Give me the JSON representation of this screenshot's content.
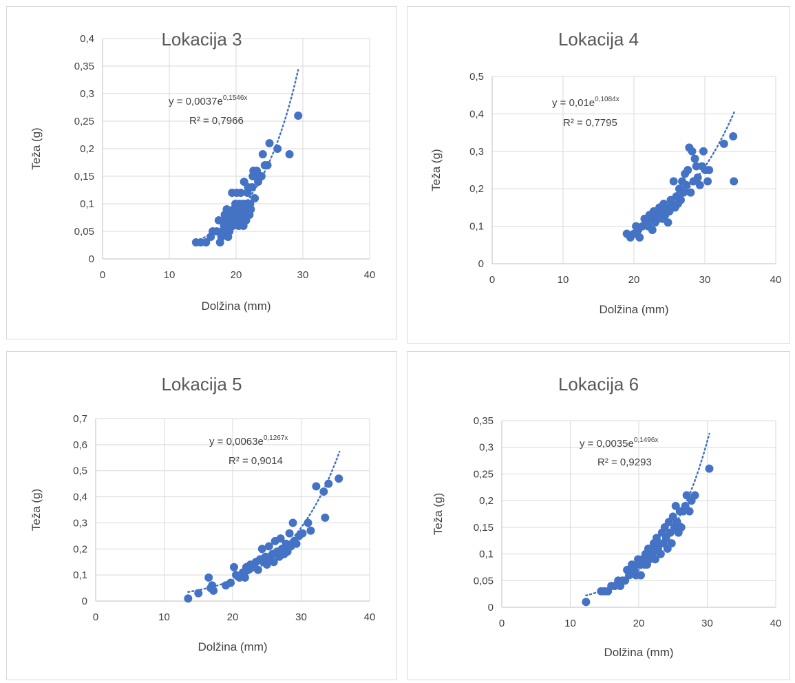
{
  "colors": {
    "marker": "#4472c4",
    "trend": "#4472c4",
    "grid": "#d9d9d9",
    "text": "#404040",
    "title": "#595959"
  },
  "chart_data": [
    {
      "type": "scatter",
      "title": "Lokacija 3",
      "xlabel": "Dolžina (mm)",
      "ylabel": "Teža (g)",
      "xlim": [
        0,
        40
      ],
      "ylim": [
        0,
        0.4
      ],
      "xticks": [
        "0",
        "10",
        "20",
        "30",
        "40"
      ],
      "yticks": [
        "0",
        "0,05",
        "0,1",
        "0,15",
        "0,2",
        "0,25",
        "0,3",
        "0,35",
        "0,4"
      ],
      "trendline": {
        "type": "exponential",
        "a": 0.0037,
        "b": 0.1546,
        "x_range": [
          14,
          29.3
        ]
      },
      "equation": {
        "prefix": "y = 0,0037e",
        "exp": "0,1546x",
        "r2": "R² = 0,7966"
      },
      "grid": true,
      "legend": "none",
      "points": [
        [
          14,
          0.03
        ],
        [
          14.7,
          0.03
        ],
        [
          15.5,
          0.03
        ],
        [
          16.2,
          0.04
        ],
        [
          16.5,
          0.05
        ],
        [
          17.1,
          0.05
        ],
        [
          17.4,
          0.07
        ],
        [
          17.6,
          0.03
        ],
        [
          17.8,
          0.04
        ],
        [
          18,
          0.05
        ],
        [
          18.2,
          0.06
        ],
        [
          18.3,
          0.08
        ],
        [
          18.5,
          0.07
        ],
        [
          18.6,
          0.09
        ],
        [
          18.8,
          0.04
        ],
        [
          18.9,
          0.06
        ],
        [
          19,
          0.05
        ],
        [
          19.2,
          0.07
        ],
        [
          19.3,
          0.08
        ],
        [
          19.4,
          0.12
        ],
        [
          19.5,
          0.06
        ],
        [
          19.6,
          0.09
        ],
        [
          19.8,
          0.07
        ],
        [
          19.9,
          0.1
        ],
        [
          20,
          0.08
        ],
        [
          20.1,
          0.12
        ],
        [
          20.2,
          0.07
        ],
        [
          20.3,
          0.09
        ],
        [
          20.4,
          0.06
        ],
        [
          20.5,
          0.1
        ],
        [
          20.6,
          0.08
        ],
        [
          20.7,
          0.12
        ],
        [
          20.8,
          0.07
        ],
        [
          20.9,
          0.09
        ],
        [
          21,
          0.1
        ],
        [
          21.1,
          0.06
        ],
        [
          21.2,
          0.14
        ],
        [
          21.3,
          0.08
        ],
        [
          21.4,
          0.1
        ],
        [
          21.5,
          0.07
        ],
        [
          21.6,
          0.09
        ],
        [
          21.7,
          0.12
        ],
        [
          21.8,
          0.13
        ],
        [
          22,
          0.08
        ],
        [
          22.1,
          0.1
        ],
        [
          22.2,
          0.09
        ],
        [
          22.4,
          0.13
        ],
        [
          22.5,
          0.15
        ],
        [
          22.6,
          0.16
        ],
        [
          22.8,
          0.11
        ],
        [
          23,
          0.15
        ],
        [
          23.1,
          0.16
        ],
        [
          23.3,
          0.14
        ],
        [
          23.5,
          0.15
        ],
        [
          23.8,
          0.15
        ],
        [
          24,
          0.19
        ],
        [
          24.3,
          0.17
        ],
        [
          24.7,
          0.17
        ],
        [
          25,
          0.21
        ],
        [
          26.2,
          0.2
        ],
        [
          28,
          0.19
        ],
        [
          29.3,
          0.26
        ]
      ]
    },
    {
      "type": "scatter",
      "title": "Lokacija 4",
      "xlabel": "Dolžina (mm)",
      "ylabel": "Teža (g)",
      "xlim": [
        0,
        40
      ],
      "ylim": [
        0,
        0.5
      ],
      "xticks": [
        "0",
        "10",
        "20",
        "30",
        "40"
      ],
      "yticks": [
        "0",
        "0,1",
        "0,2",
        "0,3",
        "0,4",
        "0,5"
      ],
      "trendline": {
        "type": "exponential",
        "a": 0.01,
        "b": 0.1084,
        "x_range": [
          19,
          34.2
        ]
      },
      "equation": {
        "prefix": "y = 0,01e",
        "exp": "0,1084x",
        "r2": "R² = 0,7795"
      },
      "grid": true,
      "legend": "none",
      "points": [
        [
          19,
          0.08
        ],
        [
          19.5,
          0.07
        ],
        [
          20,
          0.08
        ],
        [
          20.3,
          0.1
        ],
        [
          20.6,
          0.09
        ],
        [
          20.8,
          0.07
        ],
        [
          21.2,
          0.1
        ],
        [
          21.5,
          0.12
        ],
        [
          21.8,
          0.11
        ],
        [
          22,
          0.1
        ],
        [
          22.2,
          0.13
        ],
        [
          22.4,
          0.12
        ],
        [
          22.6,
          0.09
        ],
        [
          22.8,
          0.14
        ],
        [
          23,
          0.11
        ],
        [
          23.2,
          0.13
        ],
        [
          23.4,
          0.12
        ],
        [
          23.6,
          0.15
        ],
        [
          23.8,
          0.14
        ],
        [
          24,
          0.12
        ],
        [
          24.2,
          0.16
        ],
        [
          24.4,
          0.13
        ],
        [
          24.6,
          0.15
        ],
        [
          24.8,
          0.11
        ],
        [
          25,
          0.14
        ],
        [
          25.2,
          0.17
        ],
        [
          25.4,
          0.16
        ],
        [
          25.6,
          0.22
        ],
        [
          25.8,
          0.15
        ],
        [
          26,
          0.18
        ],
        [
          26.2,
          0.16
        ],
        [
          26.4,
          0.2
        ],
        [
          26.6,
          0.17
        ],
        [
          26.8,
          0.22
        ],
        [
          27,
          0.19
        ],
        [
          27.2,
          0.24
        ],
        [
          27.4,
          0.21
        ],
        [
          27.6,
          0.25
        ],
        [
          27.8,
          0.31
        ],
        [
          28,
          0.19
        ],
        [
          28.2,
          0.3
        ],
        [
          28.4,
          0.22
        ],
        [
          28.6,
          0.28
        ],
        [
          28.8,
          0.26
        ],
        [
          29,
          0.23
        ],
        [
          29.3,
          0.21
        ],
        [
          29.6,
          0.26
        ],
        [
          29.8,
          0.3
        ],
        [
          30.1,
          0.25
        ],
        [
          30.4,
          0.22
        ],
        [
          30.6,
          0.25
        ],
        [
          32.7,
          0.32
        ],
        [
          34,
          0.34
        ],
        [
          34.1,
          0.22
        ]
      ]
    },
    {
      "type": "scatter",
      "title": "Lokacija 5",
      "xlabel": "Dolžina (mm)",
      "ylabel": "Teža (g)",
      "xlim": [
        0,
        40
      ],
      "ylim": [
        0,
        0.7
      ],
      "xticks": [
        "0",
        "10",
        "20",
        "30",
        "40"
      ],
      "yticks": [
        "0",
        "0,1",
        "0,2",
        "0,3",
        "0,4",
        "0,5",
        "0,6",
        "0,7"
      ],
      "trendline": {
        "type": "exponential",
        "a": 0.0063,
        "b": 0.1267,
        "x_range": [
          13.5,
          35.6
        ]
      },
      "equation": {
        "prefix": "y = 0,0063e",
        "exp": "0,1267x",
        "r2": "R² = 0,9014"
      },
      "grid": true,
      "legend": "none",
      "points": [
        [
          13.5,
          0.01
        ],
        [
          15,
          0.03
        ],
        [
          16.5,
          0.09
        ],
        [
          16.8,
          0.05
        ],
        [
          17,
          0.06
        ],
        [
          17.2,
          0.04
        ],
        [
          19,
          0.06
        ],
        [
          19.7,
          0.07
        ],
        [
          20.2,
          0.13
        ],
        [
          20.5,
          0.1
        ],
        [
          21,
          0.09
        ],
        [
          21.5,
          0.11
        ],
        [
          21.8,
          0.09
        ],
        [
          22,
          0.13
        ],
        [
          22.3,
          0.12
        ],
        [
          22.6,
          0.14
        ],
        [
          23,
          0.13
        ],
        [
          23.4,
          0.15
        ],
        [
          23.7,
          0.12
        ],
        [
          24,
          0.16
        ],
        [
          24.3,
          0.2
        ],
        [
          24.5,
          0.15
        ],
        [
          24.8,
          0.17
        ],
        [
          25,
          0.14
        ],
        [
          25.3,
          0.21
        ],
        [
          25.5,
          0.16
        ],
        [
          25.8,
          0.18
        ],
        [
          26,
          0.15
        ],
        [
          26.2,
          0.23
        ],
        [
          26.5,
          0.19
        ],
        [
          26.8,
          0.17
        ],
        [
          27,
          0.24
        ],
        [
          27.2,
          0.2
        ],
        [
          27.5,
          0.18
        ],
        [
          27.8,
          0.22
        ],
        [
          28,
          0.19
        ],
        [
          28.3,
          0.26
        ],
        [
          28.5,
          0.21
        ],
        [
          28.8,
          0.3
        ],
        [
          29,
          0.23
        ],
        [
          29.3,
          0.22
        ],
        [
          29.7,
          0.25
        ],
        [
          30.2,
          0.26
        ],
        [
          31,
          0.3
        ],
        [
          31.4,
          0.27
        ],
        [
          32.2,
          0.44
        ],
        [
          33.3,
          0.42
        ],
        [
          33.5,
          0.32
        ],
        [
          34,
          0.45
        ],
        [
          35.5,
          0.47
        ]
      ]
    },
    {
      "type": "scatter",
      "title": "Lokacija 6",
      "xlabel": "Dolžina (mm)",
      "ylabel": "Teža (g)",
      "xlim": [
        0,
        40
      ],
      "ylim": [
        0,
        0.35
      ],
      "xticks": [
        "0",
        "10",
        "20",
        "30",
        "40"
      ],
      "yticks": [
        "0",
        "0,05",
        "0,1",
        "0,15",
        "0,2",
        "0,25",
        "0,3",
        "0,35"
      ],
      "trendline": {
        "type": "exponential",
        "a": 0.0035,
        "b": 0.1496,
        "x_range": [
          12.3,
          30.3
        ]
      },
      "equation": {
        "prefix": "y = 0,0035e",
        "exp": "0,1496x",
        "r2": "R² = 0,9293"
      },
      "grid": true,
      "legend": "none",
      "points": [
        [
          12.3,
          0.01
        ],
        [
          14.5,
          0.03
        ],
        [
          15,
          0.03
        ],
        [
          15.5,
          0.03
        ],
        [
          16,
          0.04
        ],
        [
          16.5,
          0.04
        ],
        [
          17,
          0.05
        ],
        [
          17.3,
          0.04
        ],
        [
          17.6,
          0.05
        ],
        [
          18,
          0.05
        ],
        [
          18.3,
          0.07
        ],
        [
          18.6,
          0.06
        ],
        [
          19,
          0.08
        ],
        [
          19.3,
          0.07
        ],
        [
          19.6,
          0.06
        ],
        [
          19.9,
          0.09
        ],
        [
          20.1,
          0.08
        ],
        [
          20.3,
          0.06
        ],
        [
          20.5,
          0.09
        ],
        [
          20.8,
          0.08
        ],
        [
          21,
          0.1
        ],
        [
          21.2,
          0.08
        ],
        [
          21.4,
          0.11
        ],
        [
          21.6,
          0.09
        ],
        [
          21.8,
          0.11
        ],
        [
          22,
          0.1
        ],
        [
          22.2,
          0.12
        ],
        [
          22.4,
          0.09
        ],
        [
          22.6,
          0.13
        ],
        [
          22.8,
          0.11
        ],
        [
          23,
          0.12
        ],
        [
          23.2,
          0.1
        ],
        [
          23.4,
          0.14
        ],
        [
          23.6,
          0.12
        ],
        [
          23.8,
          0.15
        ],
        [
          24,
          0.13
        ],
        [
          24.2,
          0.11
        ],
        [
          24.4,
          0.16
        ],
        [
          24.6,
          0.14
        ],
        [
          24.8,
          0.12
        ],
        [
          25,
          0.17
        ],
        [
          25.2,
          0.15
        ],
        [
          25.4,
          0.19
        ],
        [
          25.6,
          0.16
        ],
        [
          25.8,
          0.14
        ],
        [
          26,
          0.18
        ],
        [
          26.2,
          0.15
        ],
        [
          26.5,
          0.18
        ],
        [
          26.8,
          0.19
        ],
        [
          27,
          0.21
        ],
        [
          27.4,
          0.18
        ],
        [
          27.7,
          0.2
        ],
        [
          28.2,
          0.21
        ],
        [
          30.3,
          0.26
        ]
      ]
    }
  ]
}
